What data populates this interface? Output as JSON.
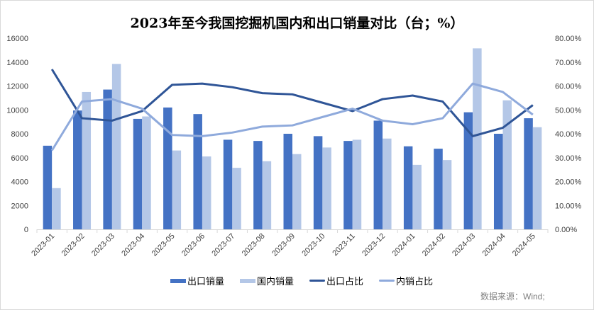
{
  "chart_data": {
    "type": "bar",
    "title": "2023年至今我国挖掘机国内和出口销量对比（台；%）",
    "categories": [
      "2023-01",
      "2023-02",
      "2023-03",
      "2023-04",
      "2023-05",
      "2023-06",
      "2023-07",
      "2023-08",
      "2023-09",
      "2023-10",
      "2023-11",
      "2023-12",
      "2024-01",
      "2024-02",
      "2024-03",
      "2024-04",
      "2024-05"
    ],
    "series": [
      {
        "name": "出口销量",
        "type": "bar",
        "axis": "left",
        "color": "#4472c4",
        "values": [
          7000,
          9950,
          11700,
          9250,
          10200,
          9650,
          7500,
          7400,
          8000,
          7800,
          7400,
          9100,
          6950,
          6750,
          9800,
          8000,
          9300
        ]
      },
      {
        "name": "国内销量",
        "type": "bar",
        "axis": "left",
        "color": "#b4c7e7",
        "values": [
          3450,
          11500,
          13850,
          9450,
          6600,
          6100,
          5150,
          5700,
          6300,
          6850,
          7500,
          7600,
          5400,
          5800,
          15150,
          10800,
          8550
        ]
      },
      {
        "name": "出口占比",
        "type": "line",
        "axis": "right",
        "color": "#2f5597",
        "values": [
          67.0,
          46.5,
          45.5,
          49.5,
          60.5,
          61.0,
          59.5,
          57.0,
          56.5,
          53.0,
          49.5,
          54.5,
          56.0,
          53.5,
          39.0,
          42.5,
          52.0
        ]
      },
      {
        "name": "内销占比",
        "type": "line",
        "axis": "right",
        "color": "#8faadc",
        "values": [
          33.0,
          53.5,
          54.5,
          50.5,
          39.5,
          39.0,
          40.5,
          43.0,
          43.5,
          47.0,
          50.5,
          45.5,
          44.0,
          46.5,
          61.0,
          57.5,
          48.0
        ]
      }
    ],
    "left_axis": {
      "ylim": [
        0,
        16000
      ],
      "ticks": [
        "0",
        "2000",
        "4000",
        "6000",
        "8000",
        "10000",
        "12000",
        "14000",
        "16000"
      ]
    },
    "right_axis": {
      "ylim": [
        0,
        80
      ],
      "ticks": [
        "0.00%",
        "10.00%",
        "20.00%",
        "30.00%",
        "40.00%",
        "50.00%",
        "60.00%",
        "70.00%",
        "80.00%"
      ]
    },
    "grid": false,
    "legend_position": "bottom",
    "source": "数据来源：Wind;"
  }
}
